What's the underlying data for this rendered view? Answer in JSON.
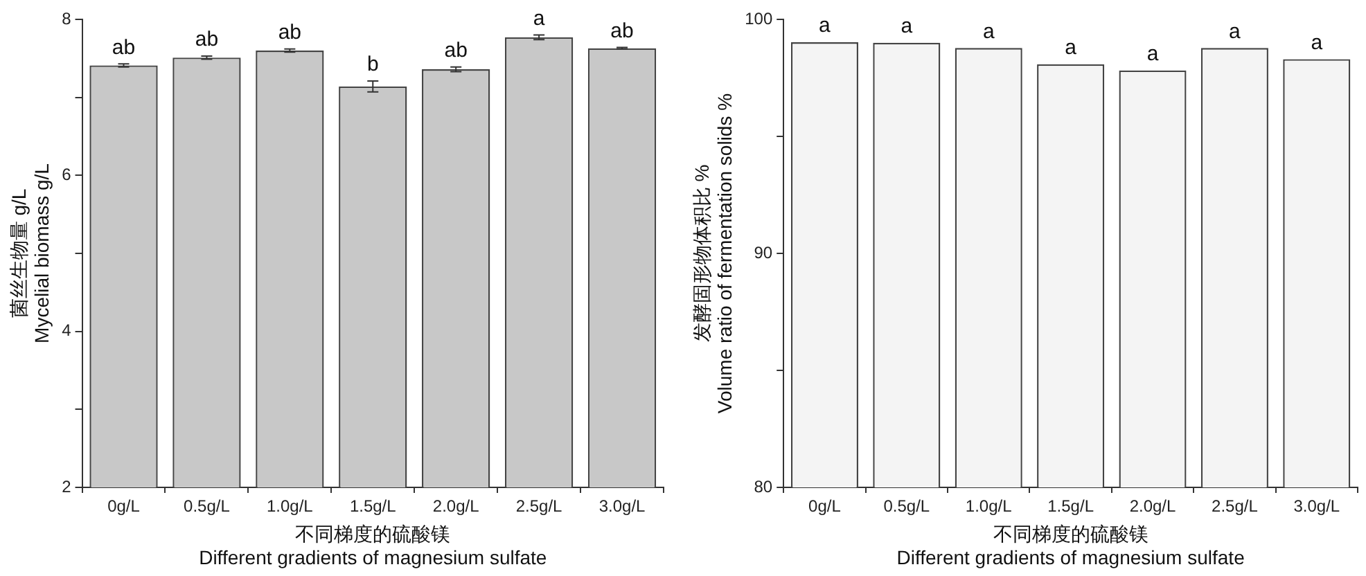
{
  "chart_data": [
    {
      "type": "bar",
      "ylabel": "菌丝生物量 g/L\nMycelial biomass g/L",
      "xlabel": "不同梯度的硫酸镁\nDifferent gradients of magnesium sulfate",
      "categories": [
        "0g/L",
        "0.5g/L",
        "1.0g/L",
        "1.5g/L",
        "2.0g/L",
        "2.5g/L",
        "3.0g/L"
      ],
      "values": [
        7.41,
        7.51,
        7.6,
        7.14,
        7.36,
        7.77,
        7.63
      ],
      "errors": [
        0.02,
        0.02,
        0.02,
        0.07,
        0.03,
        0.03,
        0.01
      ],
      "color": "#c8c8c8",
      "ylim": [
        2,
        8
      ],
      "yticks": [
        2,
        {
          "value": 3,
          "label": null
        },
        4,
        {
          "value": 5,
          "label": null
        },
        6,
        {
          "value": 7,
          "label": null
        },
        8
      ],
      "grid": false,
      "legend": false,
      "annotations": [
        {
          "text": "ab",
          "x": "0g/L",
          "y": 7.43
        },
        {
          "text": "ab",
          "x": "0.5g/L",
          "y": 7.53
        },
        {
          "text": "ab",
          "x": "1.0g/L",
          "y": 7.62
        },
        {
          "text": "b",
          "x": "1.5g/L",
          "y": 7.21
        },
        {
          "text": "ab",
          "x": "2.0g/L",
          "y": 7.39
        },
        {
          "text": "a",
          "x": "2.5g/L",
          "y": 7.8
        },
        {
          "text": "ab",
          "x": "3.0g/L",
          "y": 7.64
        }
      ]
    },
    {
      "type": "bar",
      "ylabel": "发酵固形物体积比 %\nVolume ratio of fermentation solids %",
      "xlabel": "不同梯度的硫酸镁\nDifferent gradients of magnesium sulfate",
      "categories": [
        "0g/L",
        "0.5g/L",
        "1.0g/L",
        "1.5g/L",
        "2.0g/L",
        "2.5g/L",
        "3.0g/L"
      ],
      "values": [
        99.02,
        99.0,
        98.78,
        98.08,
        97.82,
        98.78,
        98.3
      ],
      "color": "#f4f4f4",
      "ylim": [
        80,
        100
      ],
      "yticks": [
        80,
        {
          "value": 85,
          "label": null
        },
        90,
        {
          "value": 95,
          "label": null
        },
        100
      ],
      "grid": false,
      "legend": false,
      "annotations": [
        {
          "text": "a",
          "x": "0g/L",
          "y": 99.02
        },
        {
          "text": "a",
          "x": "0.5g/L",
          "y": 99.0
        },
        {
          "text": "a",
          "x": "1.0g/L",
          "y": 98.78
        },
        {
          "text": "a",
          "x": "1.5g/L",
          "y": 98.08
        },
        {
          "text": "a",
          "x": "2.0g/L",
          "y": 97.82
        },
        {
          "text": "a",
          "x": "2.5g/L",
          "y": 98.78
        },
        {
          "text": "a",
          "x": "3.0g/L",
          "y": 98.3
        }
      ]
    }
  ]
}
